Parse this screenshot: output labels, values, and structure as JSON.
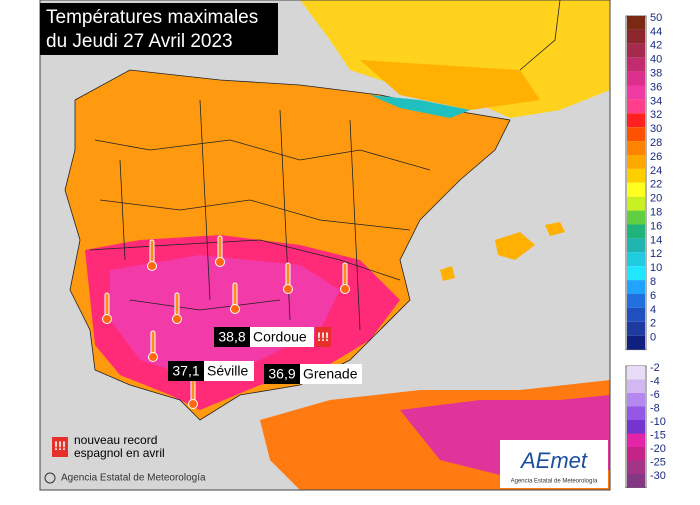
{
  "header": {
    "title_lines": [
      "Températures maximales",
      "du Jeudi 27 Avril 2023"
    ]
  },
  "cities": [
    {
      "value": "38,8",
      "name": "Cordoue",
      "record": "!!!"
    },
    {
      "value": "37,1",
      "name": "Séville"
    },
    {
      "value": "36,9",
      "name": "Grenade"
    }
  ],
  "record_legend": {
    "icon": "!!!",
    "lines": [
      "nouveau record",
      "espagnol en avril"
    ]
  },
  "credit": "Agencia Estatal de Meteorología",
  "logo": {
    "name": "AEmet",
    "subtitle": "Agencia Estatal de Meteorología"
  },
  "color_scale": {
    "positive": [
      {
        "value": 50,
        "color": "#7a2a12"
      },
      {
        "value": 44,
        "color": "#8e2630"
      },
      {
        "value": 42,
        "color": "#a52a4e"
      },
      {
        "value": 40,
        "color": "#c22c6e"
      },
      {
        "value": 38,
        "color": "#dd2f8c"
      },
      {
        "value": 36,
        "color": "#f03aa4"
      },
      {
        "value": 34,
        "color": "#ff3e8c"
      },
      {
        "value": 32,
        "color": "#ff2020"
      },
      {
        "value": 30,
        "color": "#ff5200"
      },
      {
        "value": 28,
        "color": "#ff8200"
      },
      {
        "value": 26,
        "color": "#ffa800"
      },
      {
        "value": 24,
        "color": "#ffd000"
      },
      {
        "value": 22,
        "color": "#ffff20"
      },
      {
        "value": 20,
        "color": "#c8f020"
      },
      {
        "value": 18,
        "color": "#60d040"
      },
      {
        "value": 16,
        "color": "#20b47c"
      },
      {
        "value": 14,
        "color": "#20b4b0"
      },
      {
        "value": 12,
        "color": "#20cce0"
      },
      {
        "value": 10,
        "color": "#20e6ff"
      },
      {
        "value": 8,
        "color": "#20a4ff"
      },
      {
        "value": 6,
        "color": "#2070e0"
      },
      {
        "value": 4,
        "color": "#2050c0"
      },
      {
        "value": 2,
        "color": "#1c3aa0"
      },
      {
        "value": 0,
        "color": "#102080"
      }
    ],
    "negative": [
      {
        "value": -2,
        "color": "#e8dcf6"
      },
      {
        "value": -4,
        "color": "#d2b8f2"
      },
      {
        "value": -6,
        "color": "#b488f0"
      },
      {
        "value": -8,
        "color": "#9458e4"
      },
      {
        "value": -10,
        "color": "#7434d0"
      },
      {
        "value": -15,
        "color": "#e424a8"
      },
      {
        "value": -20,
        "color": "#c42488"
      },
      {
        "value": -25,
        "color": "#a43488"
      },
      {
        "value": -30,
        "color": "#843884"
      }
    ]
  }
}
